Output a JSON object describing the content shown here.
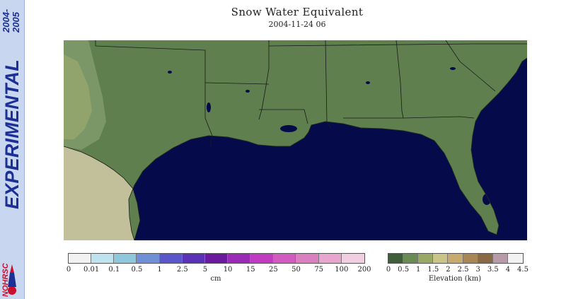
{
  "title": "Snow Water Equivalent",
  "subtitle": "2004-11-24 06",
  "sidebar": {
    "experimental": "EXPERIMENTAL",
    "years": [
      "2004-",
      "2005"
    ],
    "logo_text": "NOHRSC"
  },
  "snow_legend": {
    "unit": "cm",
    "ticks": [
      "0",
      "0.01",
      "0.1",
      "0.5",
      "1",
      "2.5",
      "5",
      "10",
      "15",
      "25",
      "50",
      "75",
      "100",
      "200"
    ],
    "colors": [
      "#f2f2f2",
      "#bfe3ee",
      "#8fc7dd",
      "#6f8fd6",
      "#5a55c9",
      "#5a32b8",
      "#6a1a9e",
      "#9b2bb6",
      "#c03bc2",
      "#d15bbf",
      "#dc7fc0",
      "#e8a6cf",
      "#f2cfe0"
    ]
  },
  "elevation_legend": {
    "unit": "Elevation (km)",
    "ticks": [
      "0",
      "0.5",
      "1",
      "1.5",
      "2",
      "2.5",
      "3",
      "3.5",
      "4",
      "4.5"
    ],
    "colors": [
      "#3f5d3a",
      "#6b8b55",
      "#9aa866",
      "#c9c488",
      "#c7ab6e",
      "#a98655",
      "#8a6a45",
      "#b99aa8",
      "#f2f2f2"
    ]
  },
  "map": {
    "region": "Gulf Coast, Southeastern United States",
    "colors": {
      "water": "#050a4a",
      "land": "#5f7f4e",
      "highland": "#7f9a6a",
      "mexico": "#c2c09a",
      "borders": "#1a1a1a"
    }
  }
}
